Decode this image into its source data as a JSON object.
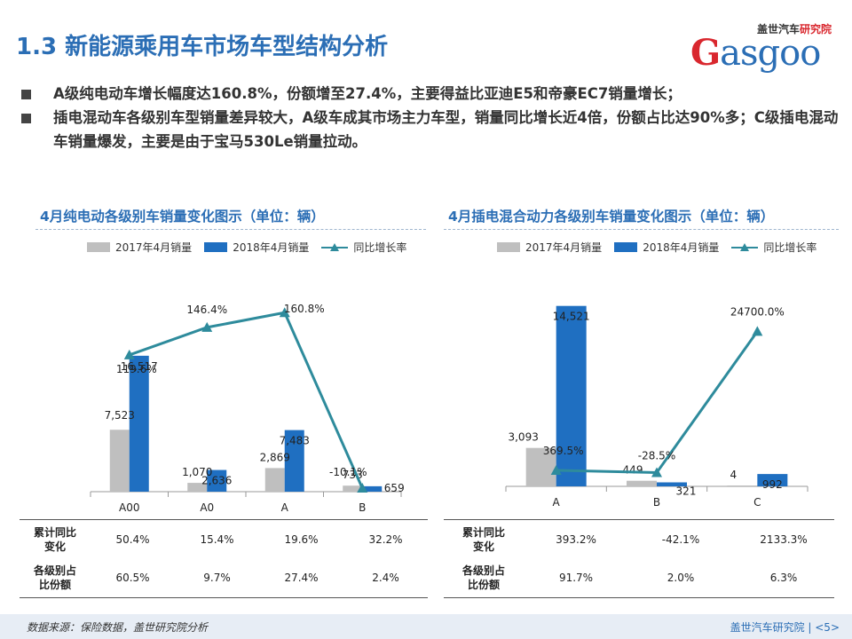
{
  "title": "1.3 新能源乘用车市场车型结构分析",
  "logo": {
    "cn_left": "盖世汽车",
    "cn_right": "研究院",
    "mark_g": "G",
    "mark_rest": "asgoo"
  },
  "bullets": [
    "A级纯电动车增长幅度达160.8%，份额增至27.4%，主要得益比亚迪E5和帝豪EC7销量增长；",
    "插电混动车各级别车型销量差异较大，A级车成其市场主力车型，销量同比增长近4倍，份额占比达90%多；C级插电混动车销量爆发，主要是由于宝马530Le销量拉动。"
  ],
  "chart_data": [
    {
      "type": "bar",
      "title": "4月纯电动各级别车销量变化图示（单位：辆）",
      "categories": [
        "A00",
        "A0",
        "A",
        "B"
      ],
      "series": [
        {
          "name": "2017年4月销量",
          "type": "bar",
          "color": "#bfbfbf",
          "values": [
            7523,
            1070,
            2869,
            733
          ],
          "labels": [
            "7,523",
            "1,070",
            "2,869",
            "733"
          ]
        },
        {
          "name": "2018年4月销量",
          "type": "bar",
          "color": "#1f6fc1",
          "values": [
            16517,
            2636,
            7483,
            659
          ],
          "labels": [
            "16,517",
            "2,636",
            "7,483",
            "659"
          ]
        },
        {
          "name": "同比增长率",
          "type": "line",
          "color": "#2e8b9c",
          "values": [
            119.6,
            146.4,
            160.8,
            -10.1
          ],
          "labels": [
            "119.6%",
            "146.4%",
            "160.8%",
            "-10.1%"
          ]
        }
      ],
      "bar_ylim": [
        0,
        22000
      ],
      "line_ylim": [
        -10.1,
        180
      ],
      "table": {
        "rows": [
          {
            "label": [
              "累计同比",
              "变化"
            ],
            "values": [
              "50.4%",
              "15.4%",
              "19.6%",
              "32.2%"
            ]
          },
          {
            "label": [
              "各级别占",
              "比份额"
            ],
            "values": [
              "60.5%",
              "9.7%",
              "27.4%",
              "2.4%"
            ]
          }
        ]
      }
    },
    {
      "type": "bar",
      "title": "4月插电混合动力各级别车销量变化图示（单位：辆）",
      "categories": [
        "A",
        "B",
        "C"
      ],
      "series": [
        {
          "name": "2017年4月销量",
          "type": "bar",
          "color": "#bfbfbf",
          "values": [
            3093,
            449,
            4
          ],
          "labels": [
            "3,093",
            "449",
            "4"
          ]
        },
        {
          "name": "2018年4月销量",
          "type": "bar",
          "color": "#1f6fc1",
          "values": [
            14521,
            321,
            992
          ],
          "labels": [
            "14,521",
            "321",
            "992"
          ]
        },
        {
          "name": "同比增长率",
          "type": "line",
          "color": "#2e8b9c",
          "values": [
            369.5,
            -28.5,
            24700.0
          ],
          "labels": [
            "369.5%",
            "-28.5%",
            "24700.0%"
          ]
        }
      ],
      "bar_ylim": [
        0,
        15000
      ],
      "line_ylim": [
        -1500,
        33000
      ],
      "table": {
        "rows": [
          {
            "label": [
              "累计同比",
              "变化"
            ],
            "values": [
              "393.2%",
              "-42.1%",
              "2133.3%"
            ]
          },
          {
            "label": [
              "各级别占",
              "比份额"
            ],
            "values": [
              "91.7%",
              "2.0%",
              "6.3%"
            ]
          }
        ]
      }
    }
  ],
  "footer": {
    "source": "数据来源：保险数据，盖世研究院分析",
    "brand": "盖世汽车研究院 | <5>"
  }
}
